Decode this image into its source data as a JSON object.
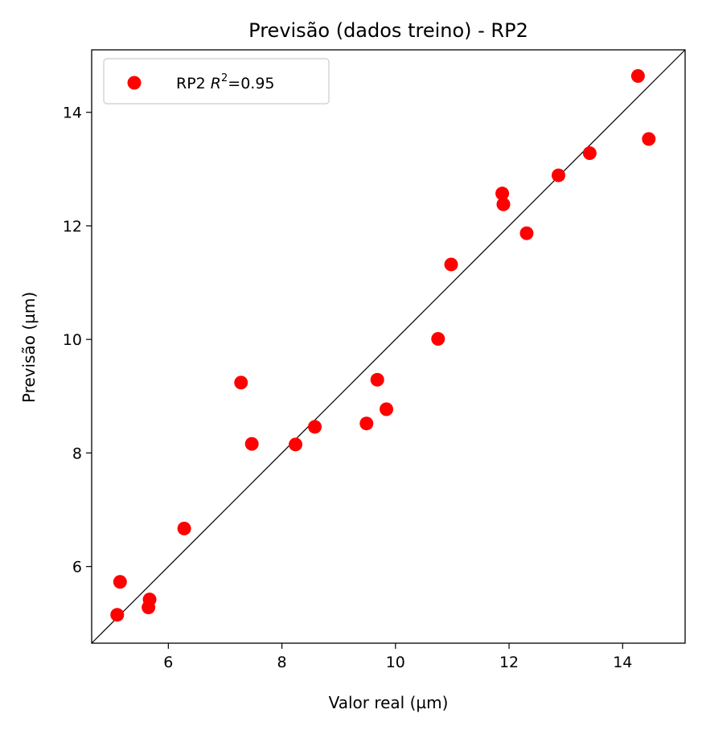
{
  "chart_data": {
    "type": "scatter",
    "title": "Previsão (dados treino) - RP2",
    "xlabel": "Valor real (µm)",
    "ylabel": "Previsão (µm)",
    "xlim": [
      4.65,
      15.1
    ],
    "ylim": [
      4.65,
      15.1
    ],
    "xticks": [
      6,
      8,
      10,
      12,
      14
    ],
    "yticks": [
      6,
      8,
      10,
      12,
      14
    ],
    "xtick_labels": [
      "6",
      "8",
      "10",
      "12",
      "14"
    ],
    "ytick_labels": [
      "6",
      "8",
      "10",
      "12",
      "14"
    ],
    "grid": false,
    "legend_position": "top-left",
    "reference_line": "y = x",
    "series": [
      {
        "name": "RP2 R²=0.95",
        "legend": {
          "prefix": "RP2 ",
          "var": "R",
          "sup": "2",
          "suffix": "=0.95"
        },
        "color": "#ff0000",
        "points": [
          [
            5.1,
            5.15
          ],
          [
            5.15,
            5.73
          ],
          [
            5.65,
            5.28
          ],
          [
            5.67,
            5.42
          ],
          [
            6.28,
            6.67
          ],
          [
            7.28,
            9.24
          ],
          [
            7.47,
            8.16
          ],
          [
            8.24,
            8.15
          ],
          [
            8.58,
            8.46
          ],
          [
            9.49,
            8.52
          ],
          [
            9.68,
            9.29
          ],
          [
            9.84,
            8.77
          ],
          [
            10.75,
            10.01
          ],
          [
            10.98,
            11.32
          ],
          [
            11.88,
            12.57
          ],
          [
            11.9,
            12.38
          ],
          [
            12.31,
            11.87
          ],
          [
            12.87,
            12.89
          ],
          [
            13.42,
            13.28
          ],
          [
            14.27,
            14.64
          ],
          [
            14.46,
            13.53
          ]
        ]
      }
    ]
  }
}
